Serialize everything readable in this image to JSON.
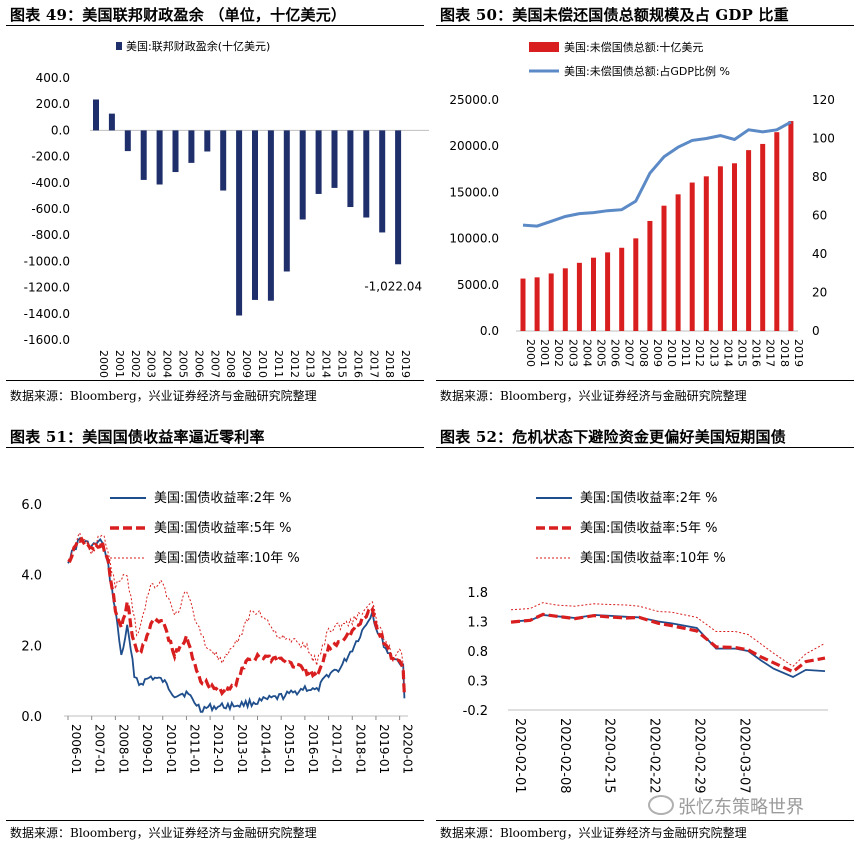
{
  "panels": [
    {
      "title": "图表 49：美国联邦财政盈余 （单位，十亿美元）",
      "source": "数据来源：Bloomberg，兴业证券经济与金融研究院整理"
    },
    {
      "title": "图表 50：美国未偿还国债总额规模及占 GDP 比重",
      "source": "数据来源：Bloomberg，兴业证券经济与金融研究院整理"
    },
    {
      "title": "图表 51：美国国债收益率逼近零利率",
      "source": "数据来源：Bloomberg，兴业证券经济与金融研究院整理"
    },
    {
      "title": "图表 52：危机状态下避险资金更偏好美国短期国债",
      "source": "数据来源：Bloomberg，兴业证券经济与金融研究院整理"
    }
  ],
  "watermark": "张忆东策略世界",
  "colors": {
    "navy": "#1f2f6b",
    "red": "#d81e1e",
    "blue": "#5b8ac6",
    "line2y": "#1f4e8c"
  },
  "chart_data": [
    {
      "type": "bar",
      "title": "美国联邦财政盈余 （单位，十亿美元）",
      "legend": [
        "美国:联邦财政盈余(十亿美元)"
      ],
      "categories": [
        "2000",
        "2001",
        "2002",
        "2003",
        "2004",
        "2005",
        "2006",
        "2007",
        "2008",
        "2009",
        "2010",
        "2011",
        "2012",
        "2013",
        "2014",
        "2015",
        "2016",
        "2017",
        "2018",
        "2019"
      ],
      "values": [
        236,
        128,
        -158,
        -378,
        -413,
        -318,
        -248,
        -161,
        -459,
        -1413,
        -1294,
        -1300,
        -1077,
        -680,
        -485,
        -439,
        -585,
        -665,
        -779,
        -1022.04
      ],
      "ylim": [
        -1600,
        400
      ],
      "yticks": [
        "400.0",
        "200.0",
        "0.0",
        "-200.0",
        "-400.0",
        "-600.0",
        "-800.0",
        "-1000.0",
        "-1200.0",
        "-1400.0",
        "-1600.0"
      ],
      "annotation": "-1,022.04"
    },
    {
      "type": "bar+line",
      "title": "美国未偿还国债总额规模及占 GDP 比重",
      "categories": [
        "2000",
        "2001",
        "2002",
        "2003",
        "2004",
        "2005",
        "2006",
        "2007",
        "2008",
        "2009",
        "2010",
        "2011",
        "2012",
        "2013",
        "2014",
        "2015",
        "2016",
        "2017",
        "2018",
        "2019"
      ],
      "series": [
        {
          "name": "美国:未偿国债总额:十亿美元",
          "axis": "left",
          "values": [
            5674,
            5807,
            6228,
            6783,
            7379,
            7933,
            8507,
            9008,
            10025,
            11910,
            13562,
            14790,
            16066,
            16738,
            17824,
            18151,
            19573,
            20245,
            21516,
            22719
          ]
        },
        {
          "name": "美国:未偿国债总额:占GDP比例 %",
          "axis": "right",
          "values": [
            55,
            54.5,
            57,
            59.5,
            61,
            61.5,
            62.5,
            63,
            67.5,
            82,
            90.5,
            95.5,
            99,
            100,
            101.5,
            99.5,
            104.5,
            103.5,
            104.5,
            108.5
          ]
        }
      ],
      "ylim_left": [
        0,
        25000
      ],
      "ylim_right": [
        0,
        120
      ],
      "yticks_left": [
        "25000.0",
        "20000.0",
        "15000.0",
        "10000.0",
        "5000.0",
        "0.0"
      ],
      "yticks_right": [
        "120",
        "100",
        "80",
        "60",
        "40",
        "20",
        "0"
      ]
    },
    {
      "type": "line",
      "title": "美国国债收益率逼近零利率",
      "x_labels": [
        "2006-01",
        "2007-01",
        "2008-01",
        "2009-01",
        "2010-01",
        "2011-01",
        "2012-01",
        "2013-01",
        "2014-01",
        "2015-01",
        "2016-01",
        "2017-01",
        "2018-01",
        "2019-01",
        "2020-01"
      ],
      "ylim": [
        0,
        6
      ],
      "yticks": [
        "6.0",
        "4.0",
        "2.0",
        "0.0"
      ],
      "series": [
        {
          "name": "美国:国债收益率:2年  %",
          "style": "solid",
          "x": [
            2006.0,
            2006.5,
            2007.0,
            2007.45,
            2007.7,
            2008.0,
            2008.25,
            2008.5,
            2008.8,
            2009.0,
            2009.5,
            2010.0,
            2010.5,
            2011.0,
            2011.6,
            2012.0,
            2013.0,
            2014.0,
            2015.0,
            2015.5,
            2016.0,
            2016.5,
            2017.0,
            2017.5,
            2018.0,
            2018.5,
            2018.85,
            2019.0,
            2019.5,
            2019.8,
            2020.0,
            2020.15,
            2020.2
          ],
          "values": [
            4.4,
            5.0,
            4.8,
            4.95,
            4.2,
            3.0,
            1.7,
            2.5,
            1.2,
            0.9,
            1.1,
            1.0,
            0.6,
            0.65,
            0.2,
            0.25,
            0.3,
            0.4,
            0.55,
            0.65,
            0.8,
            0.7,
            1.2,
            1.35,
            1.9,
            2.5,
            2.95,
            2.5,
            1.8,
            1.6,
            1.55,
            1.35,
            0.5
          ]
        },
        {
          "name": "美国:国债收益率:5年  %",
          "style": "dashed",
          "x": [
            2006.0,
            2006.5,
            2007.0,
            2007.45,
            2007.7,
            2008.0,
            2008.25,
            2008.5,
            2008.8,
            2009.0,
            2009.5,
            2010.0,
            2010.5,
            2011.0,
            2011.6,
            2012.0,
            2012.5,
            2013.0,
            2013.6,
            2014.0,
            2015.0,
            2016.0,
            2016.5,
            2017.0,
            2018.0,
            2018.85,
            2019.0,
            2019.5,
            2019.8,
            2020.0,
            2020.15,
            2020.2
          ],
          "values": [
            4.35,
            5.0,
            4.7,
            4.9,
            4.3,
            3.0,
            2.5,
            3.2,
            2.0,
            1.7,
            2.6,
            2.7,
            1.7,
            2.2,
            1.0,
            0.85,
            0.7,
            0.8,
            1.6,
            1.7,
            1.6,
            1.3,
            1.1,
            1.9,
            2.4,
            3.0,
            2.55,
            1.9,
            1.5,
            1.6,
            1.3,
            0.6
          ]
        },
        {
          "name": "美国:国债收益率:10年  %",
          "style": "dotted",
          "x": [
            2006.0,
            2006.5,
            2007.0,
            2007.45,
            2008.0,
            2008.5,
            2008.9,
            2009.0,
            2009.5,
            2010.0,
            2010.5,
            2011.0,
            2011.8,
            2012.0,
            2012.5,
            2013.0,
            2013.7,
            2014.0,
            2015.0,
            2016.0,
            2016.5,
            2017.0,
            2018.0,
            2018.85,
            2019.0,
            2019.5,
            2019.8,
            2020.0,
            2020.15,
            2020.2
          ],
          "values": [
            4.35,
            5.1,
            4.7,
            5.2,
            3.7,
            4.0,
            2.3,
            2.5,
            3.7,
            3.8,
            2.8,
            3.5,
            2.0,
            1.95,
            1.5,
            1.9,
            2.9,
            3.0,
            2.2,
            2.0,
            1.5,
            2.45,
            2.7,
            3.2,
            2.7,
            2.0,
            1.55,
            1.9,
            1.5,
            0.7
          ]
        }
      ]
    },
    {
      "type": "line",
      "title": "危机状态下避险资金更偏好美国短期国债",
      "x_labels": [
        "2020-02-01",
        "2020-02-08",
        "2020-02-15",
        "2020-02-22",
        "2020-02-29",
        "2020-03-07"
      ],
      "ylim": [
        -0.2,
        1.8
      ],
      "yticks": [
        "1.8",
        "1.3",
        "0.8",
        "0.3",
        "-0.2"
      ],
      "series": [
        {
          "name": "美国:国债收益率:2年  %",
          "style": "solid",
          "x": [
            0,
            3,
            5,
            7,
            10,
            13,
            15,
            18,
            20,
            23,
            25,
            29,
            32,
            35,
            37,
            39,
            41,
            44,
            46,
            49
          ],
          "values": [
            1.3,
            1.32,
            1.41,
            1.39,
            1.36,
            1.41,
            1.4,
            1.38,
            1.37,
            1.3,
            1.27,
            1.19,
            0.84,
            0.84,
            0.8,
            0.64,
            0.5,
            0.36,
            0.48,
            0.46
          ]
        },
        {
          "name": "美国:国债收益率:5年  %",
          "style": "dashed",
          "x": [
            0,
            3,
            5,
            7,
            10,
            13,
            15,
            18,
            20,
            23,
            25,
            29,
            32,
            35,
            37,
            39,
            41,
            44,
            46,
            49
          ],
          "values": [
            1.29,
            1.32,
            1.42,
            1.39,
            1.35,
            1.4,
            1.38,
            1.36,
            1.37,
            1.27,
            1.23,
            1.14,
            0.87,
            0.86,
            0.82,
            0.7,
            0.6,
            0.45,
            0.62,
            0.68
          ]
        },
        {
          "name": "美国:国债收益率:10年  %",
          "style": "dotted",
          "x": [
            0,
            3,
            5,
            7,
            10,
            13,
            15,
            18,
            20,
            23,
            25,
            29,
            32,
            35,
            37,
            39,
            41,
            44,
            46,
            49
          ],
          "values": [
            1.5,
            1.52,
            1.62,
            1.58,
            1.56,
            1.6,
            1.59,
            1.58,
            1.56,
            1.47,
            1.46,
            1.37,
            1.13,
            1.13,
            1.08,
            0.92,
            0.76,
            0.54,
            0.75,
            0.93
          ]
        }
      ]
    }
  ]
}
